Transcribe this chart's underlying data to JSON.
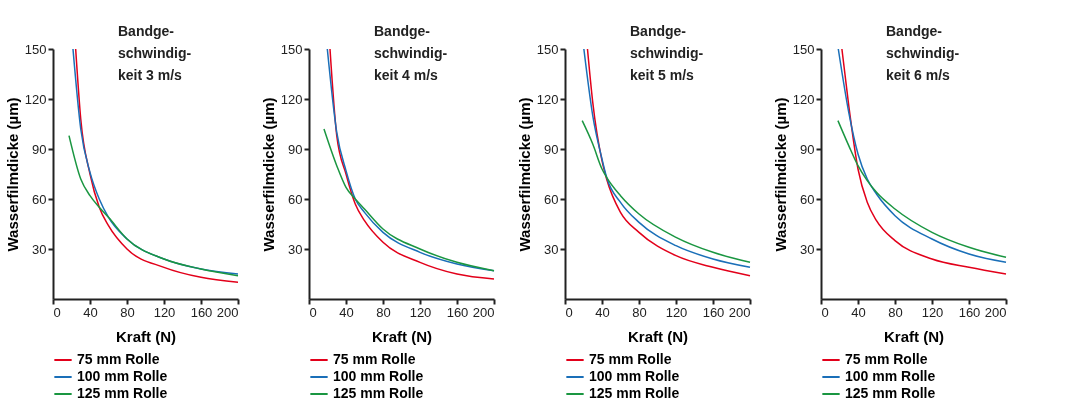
{
  "chart_data": [
    {
      "type": "line",
      "title": "Bandge-\nschwindig-\nkeit 3 m/s",
      "xlabel": "Kraft (N)",
      "ylabel": "Wasserfilmdicke (µm)",
      "xlim": [
        0,
        200
      ],
      "ylim": [
        0,
        150
      ],
      "xticks": [
        0,
        40,
        80,
        120,
        160,
        200
      ],
      "yticks": [
        30,
        60,
        90,
        120,
        150
      ],
      "grid": false,
      "legend": "bottom",
      "line_style": "solid",
      "marker": "none",
      "series": [
        {
          "name": "75 mm Rolle",
          "color": "#e2001a",
          "x": [
            24.5,
            30,
            40,
            50,
            60,
            80,
            120,
            160,
            200
          ],
          "values": [
            150,
            108,
            75,
            55,
            44,
            30,
            19,
            13,
            10
          ]
        },
        {
          "name": "100 mm Rolle",
          "color": "#1a6fb8",
          "x": [
            21.6,
            30,
            40,
            50,
            60,
            80,
            120,
            160,
            200
          ],
          "values": [
            150,
            102,
            76,
            60,
            49,
            36,
            24,
            18,
            15
          ]
        },
        {
          "name": "125 mm Rolle",
          "color": "#1a9641",
          "x": [
            17.3,
            30,
            40,
            50,
            60,
            80,
            120,
            160,
            200
          ],
          "values": [
            98,
            72,
            62,
            55,
            49,
            36,
            24,
            18,
            14
          ]
        }
      ]
    },
    {
      "type": "line",
      "title": "Bandge-\nschwindig-\nkeit 4 m/s",
      "xlabel": "Kraft (N)",
      "ylabel": "Wasserfilmdicke (µm)",
      "xlim": [
        0,
        200
      ],
      "ylim": [
        0,
        150
      ],
      "xticks": [
        0,
        40,
        80,
        120,
        160,
        200
      ],
      "yticks": [
        30,
        60,
        90,
        120,
        150
      ],
      "grid": false,
      "legend": "bottom",
      "line_style": "solid",
      "marker": "none",
      "series": [
        {
          "name": "75 mm Rolle",
          "color": "#e2001a",
          "x": [
            22.7,
            30,
            40,
            50,
            60,
            80,
            120,
            160,
            200
          ],
          "values": [
            150,
            98,
            75,
            57,
            47,
            34,
            22,
            15,
            12
          ]
        },
        {
          "name": "100 mm Rolle",
          "color": "#1a6fb8",
          "x": [
            19.8,
            30,
            40,
            50,
            60,
            80,
            120,
            160,
            200
          ],
          "values": [
            150,
            100,
            77,
            60,
            52,
            40,
            28,
            21,
            17
          ]
        },
        {
          "name": "125 mm Rolle",
          "color": "#1a9641",
          "x": [
            16.2,
            30,
            40,
            50,
            60,
            80,
            120,
            160,
            200
          ],
          "values": [
            102,
            80,
            67,
            60,
            54,
            42,
            30,
            22,
            17
          ]
        }
      ]
    },
    {
      "type": "line",
      "title": "Bandge-\nschwindig-\nkeit 5 m/s",
      "xlabel": "Kraft (N)",
      "ylabel": "Wasserfilmdicke (µm)",
      "xlim": [
        0,
        200
      ],
      "ylim": [
        0,
        150
      ],
      "xticks": [
        0,
        40,
        80,
        120,
        160,
        200
      ],
      "yticks": [
        30,
        60,
        90,
        120,
        150
      ],
      "grid": false,
      "legend": "bottom",
      "line_style": "solid",
      "marker": "none",
      "series": [
        {
          "name": "75 mm Rolle",
          "color": "#e2001a",
          "x": [
            24.3,
            30,
            40,
            45,
            60,
            80,
            120,
            160,
            200
          ],
          "values": [
            150,
            118,
            83,
            72,
            52,
            40,
            26,
            19,
            14
          ]
        },
        {
          "name": "100 mm Rolle",
          "color": "#1a6fb8",
          "x": [
            20.4,
            30,
            40,
            45,
            60,
            80,
            120,
            160,
            200
          ],
          "values": [
            150,
            110,
            84,
            73,
            58,
            46,
            32,
            24,
            19
          ]
        },
        {
          "name": "125 mm Rolle",
          "color": "#1a9641",
          "x": [
            18.6,
            30,
            40,
            45,
            60,
            80,
            120,
            160,
            200
          ],
          "values": [
            107,
            93,
            78,
            73,
            62,
            51,
            37,
            28,
            22
          ]
        }
      ]
    },
    {
      "type": "line",
      "title": "Bandge-\nschwindig-\nkeit 6 m/s",
      "xlabel": "Kraft (N)",
      "ylabel": "Wasserfilmdicke (µm)",
      "xlim": [
        0,
        200
      ],
      "ylim": [
        0,
        150
      ],
      "xticks": [
        0,
        40,
        80,
        120,
        160,
        200
      ],
      "yticks": [
        30,
        60,
        90,
        120,
        150
      ],
      "grid": false,
      "legend": "bottom",
      "line_style": "solid",
      "marker": "none",
      "series": [
        {
          "name": "75 mm Rolle",
          "color": "#e2001a",
          "x": [
            22.6,
            30,
            40,
            50,
            60,
            80,
            120,
            160,
            200
          ],
          "values": [
            150,
            116,
            78,
            58,
            47,
            35,
            24,
            19,
            15
          ]
        },
        {
          "name": "100 mm Rolle",
          "color": "#1a6fb8",
          "x": [
            18.7,
            30,
            40,
            50,
            60,
            80,
            120,
            160,
            200
          ],
          "values": [
            150,
            112,
            87,
            72,
            63,
            50,
            36,
            27,
            22
          ]
        },
        {
          "name": "125 mm Rolle",
          "color": "#1a9641",
          "x": [
            18.3,
            30,
            40,
            50,
            60,
            80,
            120,
            160,
            200
          ],
          "values": [
            107,
            92,
            80,
            71,
            64,
            54,
            40,
            31,
            25
          ]
        }
      ]
    }
  ]
}
